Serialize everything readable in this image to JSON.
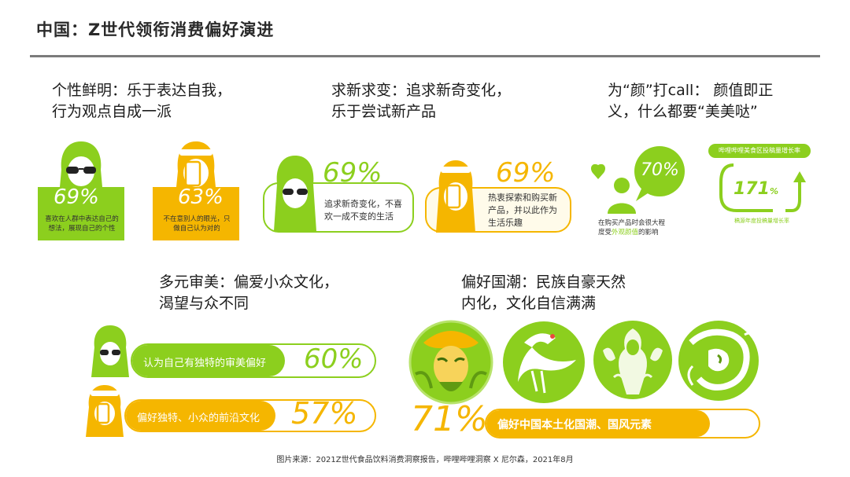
{
  "title": "中国：Z世代领衔消费偏好演进",
  "colors": {
    "lime": "#8ccf1e",
    "amber": "#f5b600"
  },
  "sections": {
    "individuality": {
      "heading_line1": "个性鲜明：乐于表达自我，",
      "heading_line2": "行为观点自成一派",
      "stat1": {
        "value": "69%",
        "desc_line1": "喜欢在人群中表达自己的",
        "desc_line2": "想法，展现自己的个性"
      },
      "stat2": {
        "value": "63%",
        "desc_line1": "不在意别人的眼光，只",
        "desc_line2": "做自己认为对的"
      }
    },
    "novelty": {
      "heading_line1": "求新求变：追求新奇变化，",
      "heading_line2": "乐于尝试新产品",
      "stat1": {
        "value": "69%",
        "desc_line1": "追求新奇变化，不喜",
        "desc_line2": "欢一成不变的生活"
      },
      "stat2": {
        "value": "69%",
        "desc_line1": "热衷探索和购买新",
        "desc_line2": "产品，并以此作为",
        "desc_line3": "生活乐趣"
      }
    },
    "appearance": {
      "heading_line1": "为“颜”打call： 颜值即正",
      "heading_line2": "义，什么都要“美美哒”",
      "stat1": {
        "value": "70%",
        "desc_line1": "在购买产品时会很大程",
        "desc_line2_a": "度受",
        "desc_line2_b": "外观颜值",
        "desc_line2_c": "的影响"
      },
      "stat2": {
        "header": "哔哩哔哩美食区投稿量增长率",
        "value": "171",
        "unit": "%",
        "note": "稿源年度投稿量增长率"
      }
    },
    "aesthetics": {
      "heading_line1": "多元审美：偏爱小众文化，",
      "heading_line2": "渴望与众不同",
      "bar1": {
        "label": "认为自己有独特的审美偏好",
        "value": "60%",
        "fraction": 0.6
      },
      "bar2": {
        "label": "偏好独特、小众的前沿文化",
        "value": "57%",
        "fraction": 0.57
      }
    },
    "guochao": {
      "heading_line1": "偏好国潮：民族自豪天然",
      "heading_line2": "内化，文化自信满满",
      "value": "71%",
      "label": "偏好中国本土化国潮、国风元素"
    }
  },
  "footer": "图片来源：2021Z世代食品饮料消费洞察报告，哔哩哔哩洞察 X 尼尔森，2021年8月"
}
